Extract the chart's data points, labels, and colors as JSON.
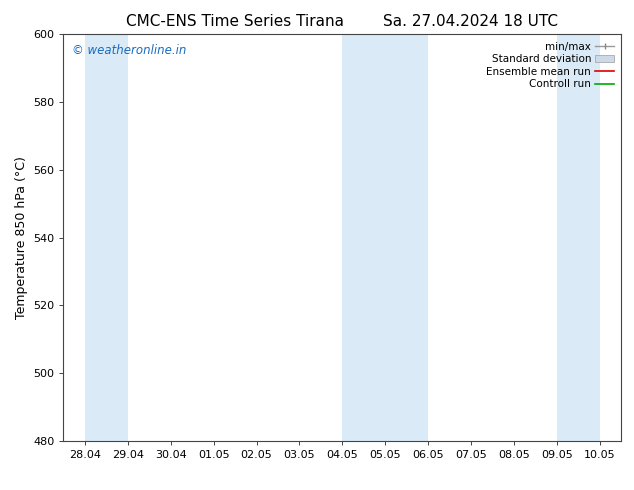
{
  "title_left": "CMC-ENS Time Series Tirana",
  "title_right": "Sa. 27.04.2024 18 UTC",
  "ylabel": "Temperature 850 hPa (°C)",
  "ylim": [
    480,
    600
  ],
  "yticks": [
    480,
    500,
    520,
    540,
    560,
    580,
    600
  ],
  "xtick_labels": [
    "28.04",
    "29.04",
    "30.04",
    "01.05",
    "02.05",
    "03.05",
    "04.05",
    "05.05",
    "06.05",
    "07.05",
    "08.05",
    "09.05",
    "10.05"
  ],
  "background_color": "#ffffff",
  "plot_bg_color": "#ffffff",
  "shaded_band_color": "#daeaf7",
  "watermark_text": "© weatheronline.in",
  "watermark_color": "#1a6bbf",
  "legend_entries": [
    "min/max",
    "Standard deviation",
    "Ensemble mean run",
    "Controll run"
  ],
  "legend_line_colors": [
    "#aaaaaa",
    "#bbccdd",
    "#ff0000",
    "#00aa00"
  ],
  "shaded_ranges": [
    [
      0,
      1
    ],
    [
      6,
      8
    ],
    [
      11,
      12
    ]
  ],
  "title_fontsize": 11,
  "axis_label_fontsize": 9,
  "tick_fontsize": 8,
  "legend_fontsize": 7.5
}
